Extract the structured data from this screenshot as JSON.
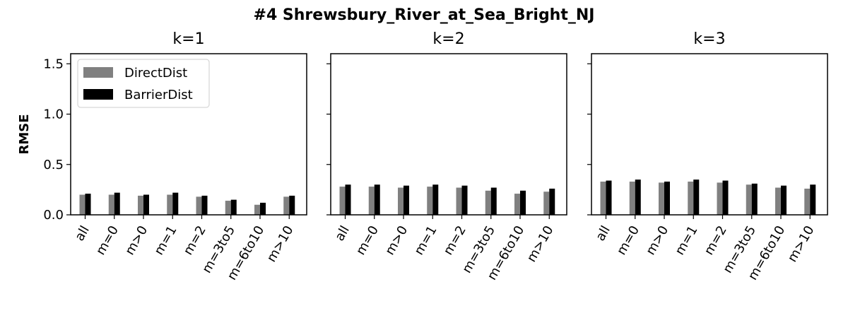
{
  "figure": {
    "suptitle": "#4 Shrewsbury_River_at_Sea_Bright_NJ",
    "ylabel": "RMSE"
  },
  "legend": {
    "placement": "top-left",
    "entries": [
      {
        "label": "DirectDist",
        "color": "#808080"
      },
      {
        "label": "BarrierDist",
        "color": "#000000"
      }
    ]
  },
  "chart_data": [
    {
      "type": "bar",
      "title": "k=1",
      "categories": [
        "all",
        "m=0",
        "m>0",
        "m=1",
        "m=2",
        "m=3to5",
        "m=6to10",
        "m>10"
      ],
      "ylabel": "RMSE",
      "ylim": [
        0,
        1.6
      ],
      "yticks": [
        "0.0",
        "0.5",
        "1.0",
        "1.5"
      ],
      "series": [
        {
          "name": "DirectDist",
          "color": "#808080",
          "values": [
            0.2,
            0.2,
            0.19,
            0.2,
            0.18,
            0.14,
            0.1,
            0.18
          ]
        },
        {
          "name": "BarrierDist",
          "color": "#000000",
          "values": [
            0.21,
            0.22,
            0.2,
            0.22,
            0.19,
            0.15,
            0.12,
            0.19
          ]
        }
      ]
    },
    {
      "type": "bar",
      "title": "k=2",
      "categories": [
        "all",
        "m=0",
        "m>0",
        "m=1",
        "m=2",
        "m=3to5",
        "m=6to10",
        "m>10"
      ],
      "ylim": [
        0,
        1.6
      ],
      "series": [
        {
          "name": "DirectDist",
          "color": "#808080",
          "values": [
            0.28,
            0.28,
            0.27,
            0.28,
            0.27,
            0.24,
            0.21,
            0.23
          ]
        },
        {
          "name": "BarrierDist",
          "color": "#000000",
          "values": [
            0.3,
            0.3,
            0.29,
            0.3,
            0.29,
            0.27,
            0.24,
            0.26
          ]
        }
      ]
    },
    {
      "type": "bar",
      "title": "k=3",
      "categories": [
        "all",
        "m=0",
        "m>0",
        "m=1",
        "m=2",
        "m=3to5",
        "m=6to10",
        "m>10"
      ],
      "ylim": [
        0,
        1.6
      ],
      "series": [
        {
          "name": "DirectDist",
          "color": "#808080",
          "values": [
            0.33,
            0.33,
            0.32,
            0.33,
            0.32,
            0.3,
            0.27,
            0.26
          ]
        },
        {
          "name": "BarrierDist",
          "color": "#000000",
          "values": [
            0.34,
            0.35,
            0.33,
            0.35,
            0.34,
            0.31,
            0.29,
            0.3
          ]
        }
      ]
    }
  ]
}
